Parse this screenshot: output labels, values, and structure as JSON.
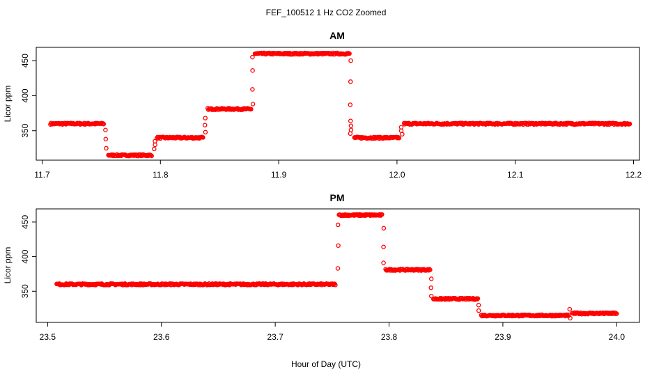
{
  "figure": {
    "title": "FEF_100512  1 Hz CO2 Zoomed",
    "xlabel": "Hour of Day (UTC)"
  },
  "chart_data": [
    {
      "type": "scatter",
      "title": "AM",
      "ylabel": "Licor ppm",
      "xlabel": "",
      "xlim": [
        11.695,
        12.205
      ],
      "ylim": [
        308,
        469
      ],
      "xticks": [
        11.7,
        11.8,
        11.9,
        12.0,
        12.1,
        12.2
      ],
      "xtick_labels": [
        "11.7",
        "11.8",
        "11.9",
        "12.0",
        "12.1",
        "12.2"
      ],
      "yticks": [
        350,
        400,
        450
      ],
      "ytick_labels": [
        "350",
        "400",
        "450"
      ],
      "marker": "open-circle",
      "color": "#ff0000",
      "grid": false,
      "series": [
        {
          "segments": [
            {
              "x0": 11.707,
              "x1": 11.752,
              "y": 360
            },
            {
              "x0": 11.756,
              "x1": 11.793,
              "y": 315
            },
            {
              "x0": 11.797,
              "x1": 11.836,
              "y": 340
            },
            {
              "x0": 11.84,
              "x1": 11.877,
              "y": 381
            },
            {
              "x0": 11.88,
              "x1": 11.96,
              "y": 460
            },
            {
              "x0": 11.964,
              "x1": 12.002,
              "y": 340
            },
            {
              "x0": 12.006,
              "x1": 12.197,
              "y": 360
            }
          ],
          "transitions": [
            {
              "x": 11.754,
              "y": [
                351,
                338,
                325
              ]
            },
            {
              "x": 11.795,
              "y": [
                324,
                330,
                335
              ]
            },
            {
              "x": 11.838,
              "y": [
                348,
                358,
                368
              ]
            },
            {
              "x": 11.878,
              "y": [
                388,
                409,
                436,
                455
              ]
            },
            {
              "x": 11.961,
              "y": [
                450,
                420,
                387,
                364,
                357,
                351,
                346
              ]
            },
            {
              "x": 12.004,
              "y": [
                345,
                350,
                355
              ]
            }
          ]
        }
      ]
    },
    {
      "type": "scatter",
      "title": "PM",
      "ylabel": "Licor ppm",
      "xlabel": "Hour of Day (UTC)",
      "xlim": [
        23.49,
        24.02
      ],
      "ylim": [
        305,
        469
      ],
      "xticks": [
        23.5,
        23.6,
        23.7,
        23.8,
        23.9,
        24.0
      ],
      "xtick_labels": [
        "23.5",
        "23.6",
        "23.7",
        "23.8",
        "23.9",
        "24.0"
      ],
      "yticks": [
        350,
        400,
        450
      ],
      "ytick_labels": [
        "350",
        "400",
        "450"
      ],
      "marker": "open-circle",
      "color": "#ff0000",
      "grid": false,
      "series": [
        {
          "segments": [
            {
              "x0": 23.508,
              "x1": 23.753,
              "y": 360
            },
            {
              "x0": 23.756,
              "x1": 23.794,
              "y": 460
            },
            {
              "x0": 23.797,
              "x1": 23.836,
              "y": 381
            },
            {
              "x0": 23.839,
              "x1": 23.878,
              "y": 339
            },
            {
              "x0": 23.881,
              "x1": 23.958,
              "y": 315
            },
            {
              "x0": 23.961,
              "x1": 24.0,
              "y": 318
            }
          ],
          "transitions": [
            {
              "x": 23.755,
              "y": [
                383,
                416,
                446
              ]
            },
            {
              "x": 23.795,
              "y": [
                441,
                414,
                391
              ]
            },
            {
              "x": 23.837,
              "y": [
                368,
                355,
                343
              ]
            },
            {
              "x": 23.879,
              "y": [
                330,
                322
              ]
            },
            {
              "x": 23.959,
              "y": [
                311,
                324
              ]
            }
          ]
        }
      ]
    }
  ]
}
